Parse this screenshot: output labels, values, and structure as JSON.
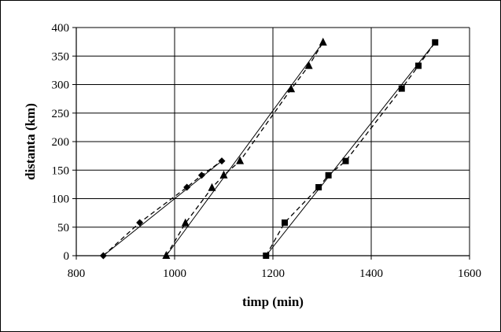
{
  "chart_data": {
    "type": "scatter",
    "xlabel": "timp (min)",
    "ylabel": "distanta (km)",
    "xlim": [
      800,
      1600
    ],
    "ylim": [
      0,
      400
    ],
    "x_ticks": [
      800,
      1000,
      1200,
      1400,
      1600
    ],
    "y_ticks": [
      0,
      50,
      100,
      150,
      200,
      250,
      300,
      350,
      400
    ],
    "grid": "major-both",
    "legend": "none",
    "series": [
      {
        "marker": "diamond",
        "color": "#000000",
        "x": [
          855,
          929,
          1025,
          1055,
          1096
        ],
        "y": [
          0,
          58,
          120,
          141,
          166
        ],
        "fit": {
          "x": [
            855,
            1096
          ],
          "y": [
            0,
            166
          ]
        }
      },
      {
        "marker": "triangle",
        "color": "#000000",
        "x": [
          983,
          1022,
          1076,
          1100,
          1133,
          1237,
          1273,
          1302
        ],
        "y": [
          0,
          57,
          119,
          141,
          166,
          292,
          333,
          374
        ],
        "fit": {
          "x": [
            983,
            1302
          ],
          "y": [
            0,
            374
          ]
        }
      },
      {
        "marker": "square",
        "color": "#000000",
        "x": [
          1186,
          1224,
          1293,
          1313,
          1348,
          1462,
          1496,
          1530
        ],
        "y": [
          0,
          58,
          120,
          141,
          166,
          293,
          333,
          374
        ],
        "fit": {
          "x": [
            1186,
            1530
          ],
          "y": [
            0,
            374
          ]
        }
      }
    ]
  }
}
